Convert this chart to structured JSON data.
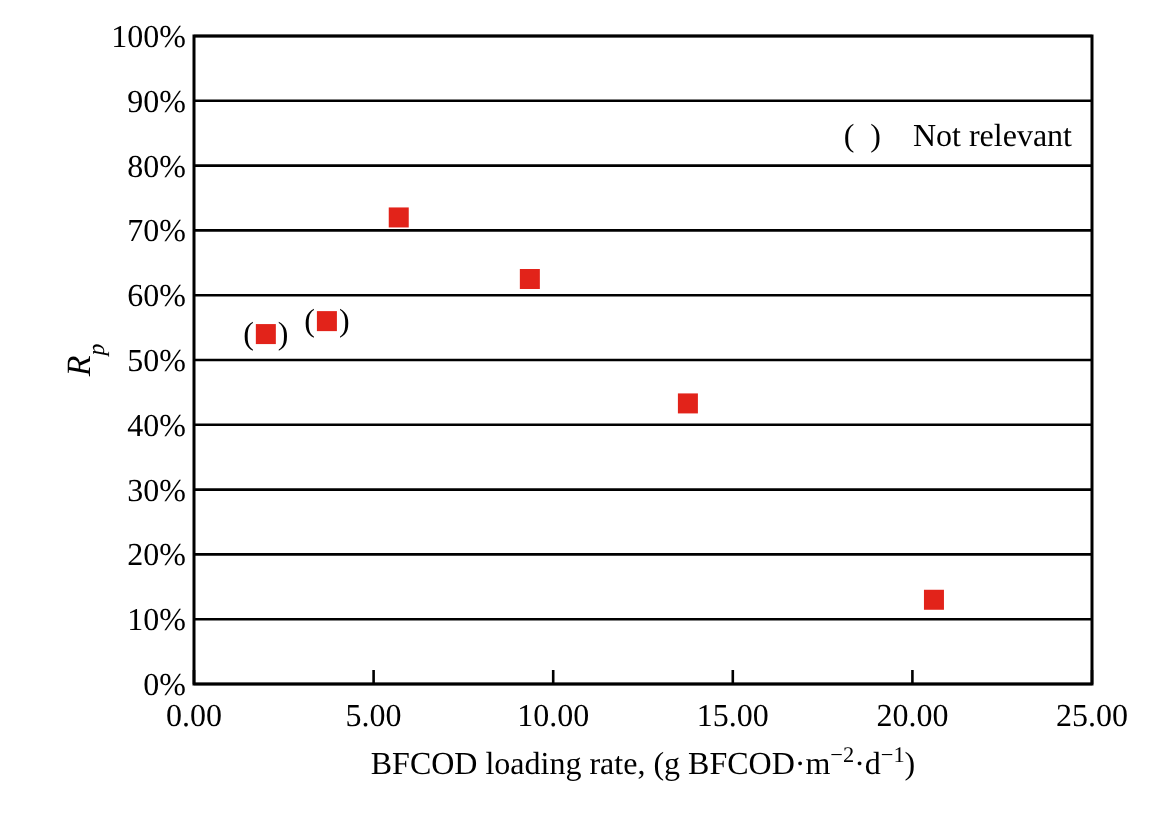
{
  "chart_data": {
    "type": "scatter",
    "xlabel": "BFCOD loading rate, (g BFCOD·m$^{−2}$·d$^{−1}$)",
    "ylabel": "R$_{p}$",
    "x": [
      2.0,
      3.7,
      5.7,
      9.35,
      13.75,
      20.6
    ],
    "series": [
      {
        "color": "#e2231a",
        "values": [
          54,
          56,
          72,
          62.5,
          43.3,
          13
        ]
      }
    ],
    "marker": "square",
    "grid": "y",
    "xlim": [
      0,
      25
    ],
    "xticks": [
      {
        "value": 0,
        "label": "0.00"
      },
      {
        "value": 5,
        "label": "5.00"
      },
      {
        "value": 10,
        "label": "10.00"
      },
      {
        "value": 15,
        "label": "15.00"
      },
      {
        "value": 20,
        "label": "20.00"
      },
      {
        "value": 25,
        "label": "25.00"
      }
    ],
    "ylim": [
      0,
      100
    ],
    "yticks": [
      {
        "value": 0,
        "label": "0%"
      },
      {
        "value": 10,
        "label": "10%"
      },
      {
        "value": 20,
        "label": "20%"
      },
      {
        "value": 30,
        "label": "30%"
      },
      {
        "value": 40,
        "label": "40%"
      },
      {
        "value": 50,
        "label": "50%"
      },
      {
        "value": 60,
        "label": "60%"
      },
      {
        "value": 70,
        "label": "70%"
      },
      {
        "value": 80,
        "label": "80%"
      },
      {
        "value": 90,
        "label": "90%"
      },
      {
        "value": 100,
        "label": "100%"
      }
    ],
    "annotations": [
      {
        "text": "(   )",
        "x": 2.0,
        "y": 54
      },
      {
        "text": "(   )",
        "x": 3.7,
        "y": 56
      },
      "(  )    Not relevant"
    ]
  }
}
